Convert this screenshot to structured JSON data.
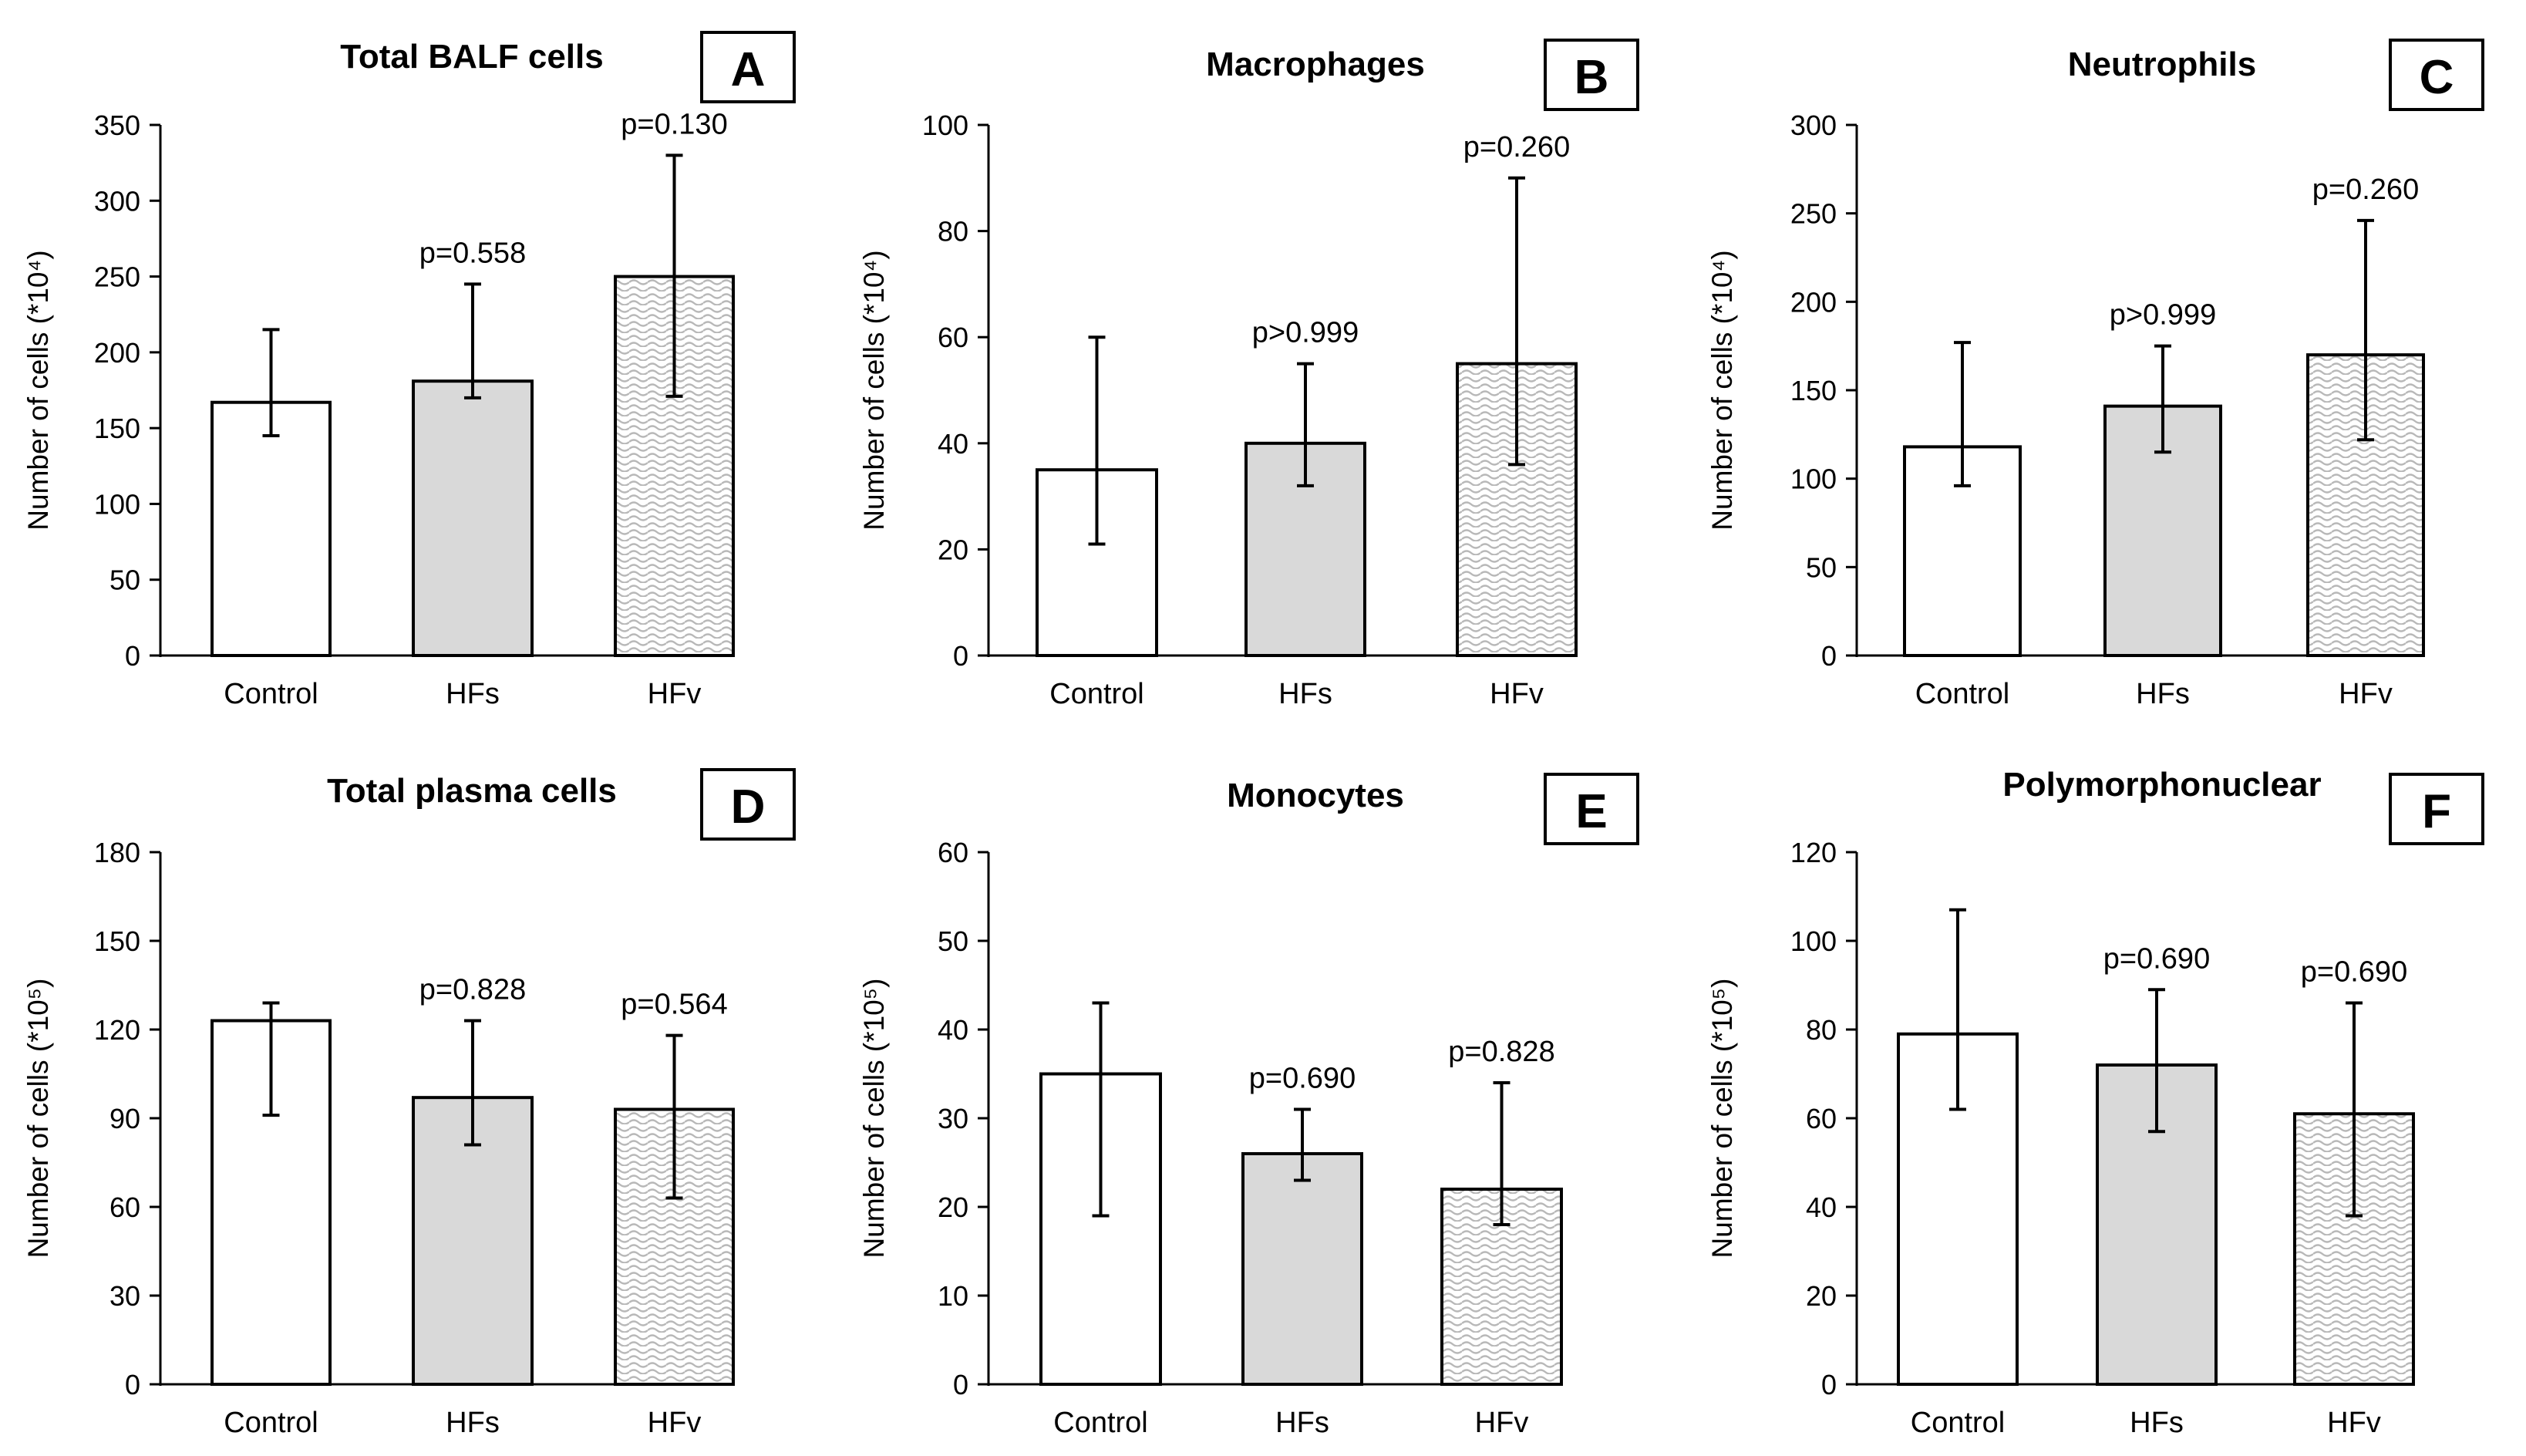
{
  "figure": {
    "categories": [
      "Control",
      "HFs",
      "HFv"
    ],
    "colors": {
      "control": "#ffffff",
      "hfs": "#d9d9d9",
      "hfv_pattern": "#bfbfbf",
      "axis": "#000000"
    }
  },
  "chart_data": [
    {
      "type": "bar",
      "panel": "A",
      "title": "Total BALF cells",
      "ylabel": "Number of cells (*10⁴)",
      "categories": [
        "Control",
        "HFs",
        "HFv"
      ],
      "values": [
        167,
        181,
        250
      ],
      "error_low": [
        145,
        170,
        171
      ],
      "error_high": [
        215,
        245,
        330
      ],
      "pvalues": [
        "",
        "p=0.558",
        "p=0.130"
      ],
      "ylim": [
        0,
        350
      ],
      "yticks": [
        0,
        50,
        100,
        150,
        200,
        250,
        300,
        350
      ]
    },
    {
      "type": "bar",
      "panel": "B",
      "title": "Macrophages",
      "ylabel": "Number of cells (*10⁴)",
      "categories": [
        "Control",
        "HFs",
        "HFv"
      ],
      "values": [
        35,
        40,
        55
      ],
      "error_low": [
        21,
        32,
        36
      ],
      "error_high": [
        60,
        55,
        90
      ],
      "pvalues": [
        "",
        "p>0.999",
        "p=0.260"
      ],
      "ylim": [
        0,
        100
      ],
      "yticks": [
        0,
        20,
        40,
        60,
        80,
        100
      ]
    },
    {
      "type": "bar",
      "panel": "C",
      "title": "Neutrophils",
      "ylabel": "Number of cells (*10⁴)",
      "categories": [
        "Control",
        "HFs",
        "HFv"
      ],
      "values": [
        118,
        141,
        170
      ],
      "error_low": [
        96,
        115,
        122
      ],
      "error_high": [
        177,
        175,
        246
      ],
      "pvalues": [
        "",
        "p>0.999",
        "p=0.260"
      ],
      "ylim": [
        0,
        300
      ],
      "yticks": [
        0,
        50,
        100,
        150,
        200,
        250,
        300
      ]
    },
    {
      "type": "bar",
      "panel": "D",
      "title": "Total plasma cells",
      "ylabel": "Number of cells (*10⁵)",
      "categories": [
        "Control",
        "HFs",
        "HFv"
      ],
      "values": [
        123,
        97,
        93
      ],
      "error_low": [
        91,
        81,
        63
      ],
      "error_high": [
        129,
        123,
        118
      ],
      "pvalues": [
        "",
        "p=0.828",
        "p=0.564"
      ],
      "ylim": [
        0,
        180
      ],
      "yticks": [
        0,
        30,
        60,
        90,
        120,
        150,
        180
      ]
    },
    {
      "type": "bar",
      "panel": "E",
      "title": "Monocytes",
      "ylabel": "Number of cells (*10⁵)",
      "categories": [
        "Control",
        "HFs",
        "HFv"
      ],
      "values": [
        35,
        26,
        22
      ],
      "error_low": [
        19,
        23,
        18
      ],
      "error_high": [
        43,
        31,
        34
      ],
      "pvalues": [
        "",
        "p=0.690",
        "p=0.828"
      ],
      "ylim": [
        0,
        60
      ],
      "yticks": [
        0,
        10,
        20,
        30,
        40,
        50,
        60
      ]
    },
    {
      "type": "bar",
      "panel": "F",
      "title": "Polymorphonuclear",
      "ylabel": "Number of cells (*10⁵)",
      "categories": [
        "Control",
        "HFs",
        "HFv"
      ],
      "values": [
        79,
        72,
        61
      ],
      "error_low": [
        62,
        57,
        38
      ],
      "error_high": [
        107,
        89,
        86
      ],
      "pvalues": [
        "",
        "p=0.690",
        "p=0.690"
      ],
      "ylim": [
        0,
        120
      ],
      "yticks": [
        0,
        20,
        40,
        60,
        80,
        100,
        120
      ]
    }
  ]
}
